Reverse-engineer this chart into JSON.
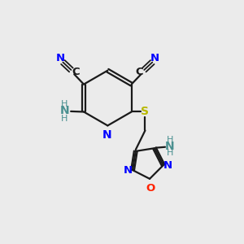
{
  "background_color": "#ebebeb",
  "figsize": [
    3.0,
    3.0
  ],
  "dpi": 100,
  "bond_color": "#1a1a1a",
  "N_color": "#0000ff",
  "O_color": "#ff2200",
  "S_color": "#b8b800",
  "NH_color": "#4a9090",
  "xlim": [
    0,
    10
  ],
  "ylim": [
    0,
    10
  ]
}
